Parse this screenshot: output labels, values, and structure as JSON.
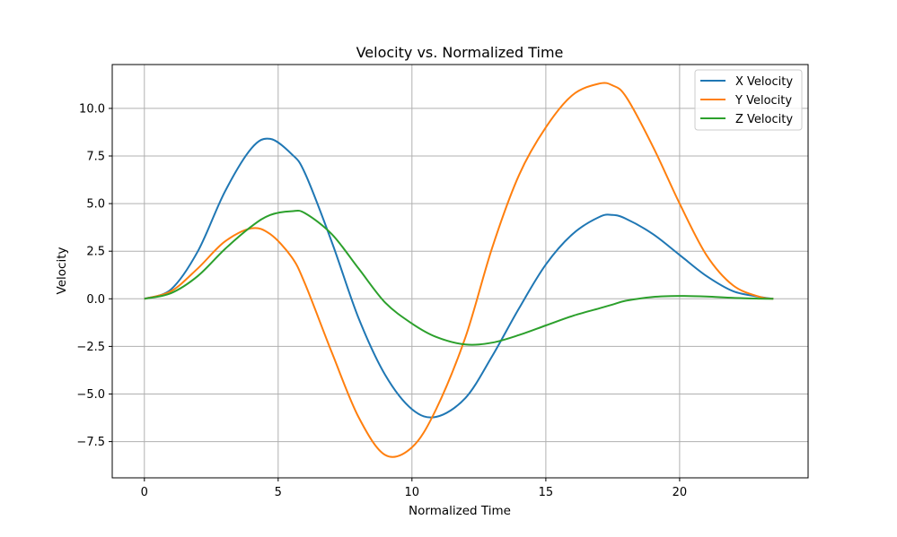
{
  "chart_data": {
    "type": "line",
    "title": "Velocity vs. Normalized Time",
    "xlabel": "Normalized Time",
    "ylabel": "Velocity",
    "xlim": [
      -1.2,
      24.8
    ],
    "ylim": [
      -9.4,
      12.3
    ],
    "grid": true,
    "legend_position": "top-right",
    "x_ticks": [
      0,
      5,
      10,
      15,
      20
    ],
    "x_tick_labels": [
      "0",
      "5",
      "10",
      "15",
      "20"
    ],
    "y_ticks": [
      -7.5,
      -5.0,
      -2.5,
      0.0,
      2.5,
      5.0,
      7.5,
      10.0
    ],
    "y_tick_labels": [
      "−7.5",
      "−5.0",
      "−2.5",
      "0.0",
      "2.5",
      "5.0",
      "7.5",
      "10.0"
    ],
    "x": [
      0,
      1,
      2,
      3,
      4,
      4.7,
      5.5,
      6,
      7,
      8,
      9,
      10,
      10.9,
      12,
      13,
      14,
      15,
      16,
      17,
      17.5,
      18,
      19,
      20,
      21,
      22,
      23,
      23.5
    ],
    "series": [
      {
        "name": "X Velocity",
        "color": "#1f77b4",
        "values": [
          0,
          0.5,
          2.5,
          5.6,
          7.9,
          8.4,
          7.6,
          6.6,
          3.0,
          -1.0,
          -4.0,
          -5.8,
          -6.2,
          -5.2,
          -3.0,
          -0.5,
          1.8,
          3.4,
          4.3,
          4.4,
          4.2,
          3.4,
          2.3,
          1.2,
          0.4,
          0.1,
          0
        ]
      },
      {
        "name": "Y Velocity",
        "color": "#ff7f0e",
        "values": [
          0,
          0.4,
          1.6,
          3.0,
          3.7,
          3.4,
          2.2,
          0.8,
          -2.8,
          -6.2,
          -8.2,
          -7.8,
          -5.8,
          -2.0,
          2.7,
          6.5,
          9.0,
          10.7,
          11.3,
          11.2,
          10.6,
          8.0,
          5.0,
          2.3,
          0.7,
          0.1,
          0
        ]
      },
      {
        "name": "Z Velocity",
        "color": "#2ca02c",
        "values": [
          0,
          0.3,
          1.2,
          2.6,
          3.8,
          4.4,
          4.6,
          4.5,
          3.4,
          1.6,
          -0.2,
          -1.3,
          -2.0,
          -2.4,
          -2.3,
          -1.9,
          -1.4,
          -0.9,
          -0.5,
          -0.3,
          -0.1,
          0.1,
          0.15,
          0.12,
          0.05,
          0.01,
          0
        ]
      }
    ]
  }
}
